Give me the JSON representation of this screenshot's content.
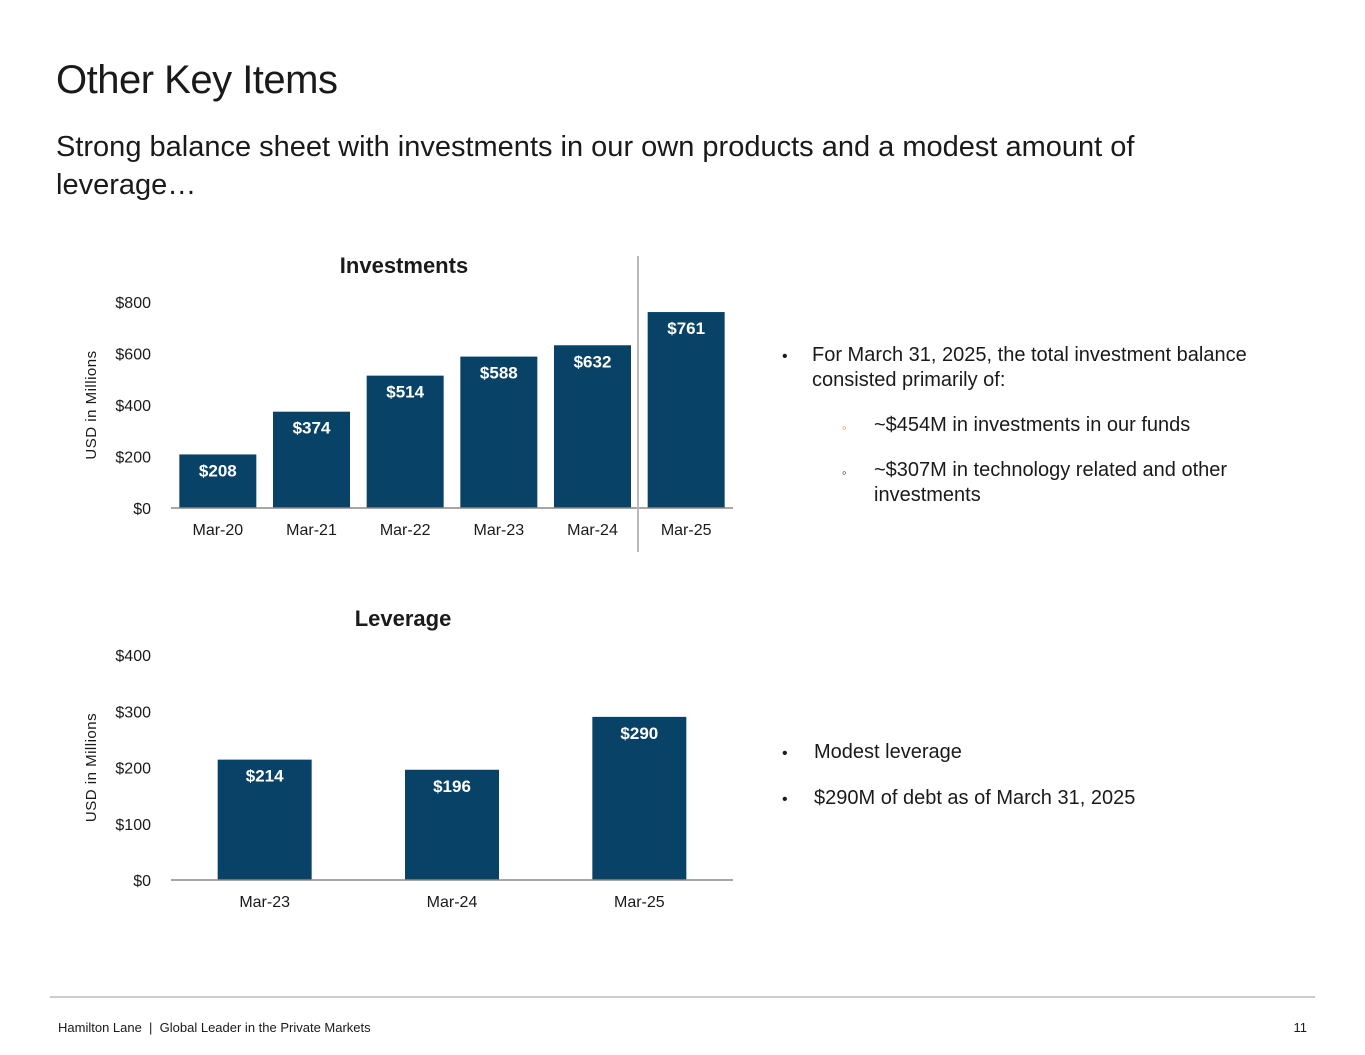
{
  "page": {
    "title": "Other Key Items",
    "subtitle": "Strong balance sheet with investments in our own products and a modest amount of leverage…"
  },
  "colors": {
    "bar": "#084266",
    "axis": "#888888",
    "divider": "#b9b9b9",
    "bullet_orange": "#e07b39"
  },
  "chart_data": [
    {
      "type": "bar",
      "title": "Investments",
      "ylabel": "USD in Millions",
      "xlabel": "",
      "categories": [
        "Mar-20",
        "Mar-21",
        "Mar-22",
        "Mar-23",
        "Mar-24",
        "Mar-25"
      ],
      "values": [
        208,
        374,
        514,
        588,
        632,
        761
      ],
      "labels": [
        "$208",
        "$374",
        "$514",
        "$588",
        "$632",
        "$761"
      ],
      "yticks": [
        "$0",
        "$200",
        "$400",
        "$600",
        "$800"
      ],
      "ytick_values": [
        0,
        200,
        400,
        600,
        800
      ],
      "ylim": [
        0,
        800
      ],
      "grid": false
    },
    {
      "type": "bar",
      "title": "Leverage",
      "ylabel": "USD in Millions",
      "xlabel": "",
      "categories": [
        "Mar-23",
        "Mar-24",
        "Mar-25"
      ],
      "values": [
        214,
        196,
        290
      ],
      "labels": [
        "$214",
        "$196",
        "$290"
      ],
      "yticks": [
        "$0",
        "$100",
        "$200",
        "$300",
        "$400"
      ],
      "ytick_values": [
        0,
        100,
        200,
        300,
        400
      ],
      "ylim": [
        0,
        400
      ],
      "grid": false
    }
  ],
  "investments_notes": {
    "lead": "For March 31, 2025, the total investment balance consisted primarily of:",
    "sub": [
      "~$454M in investments in our funds",
      "~$307M in technology related and other investments"
    ],
    "bullet_main": "•",
    "bullet_sub": "◦"
  },
  "leverage_notes": {
    "items": [
      "Modest leverage",
      "$290M of debt as of March 31, 2025"
    ],
    "bullet": "•"
  },
  "footer": {
    "left": "Hamilton Lane  |  Global Leader in the Private Markets",
    "page_number": "11"
  }
}
